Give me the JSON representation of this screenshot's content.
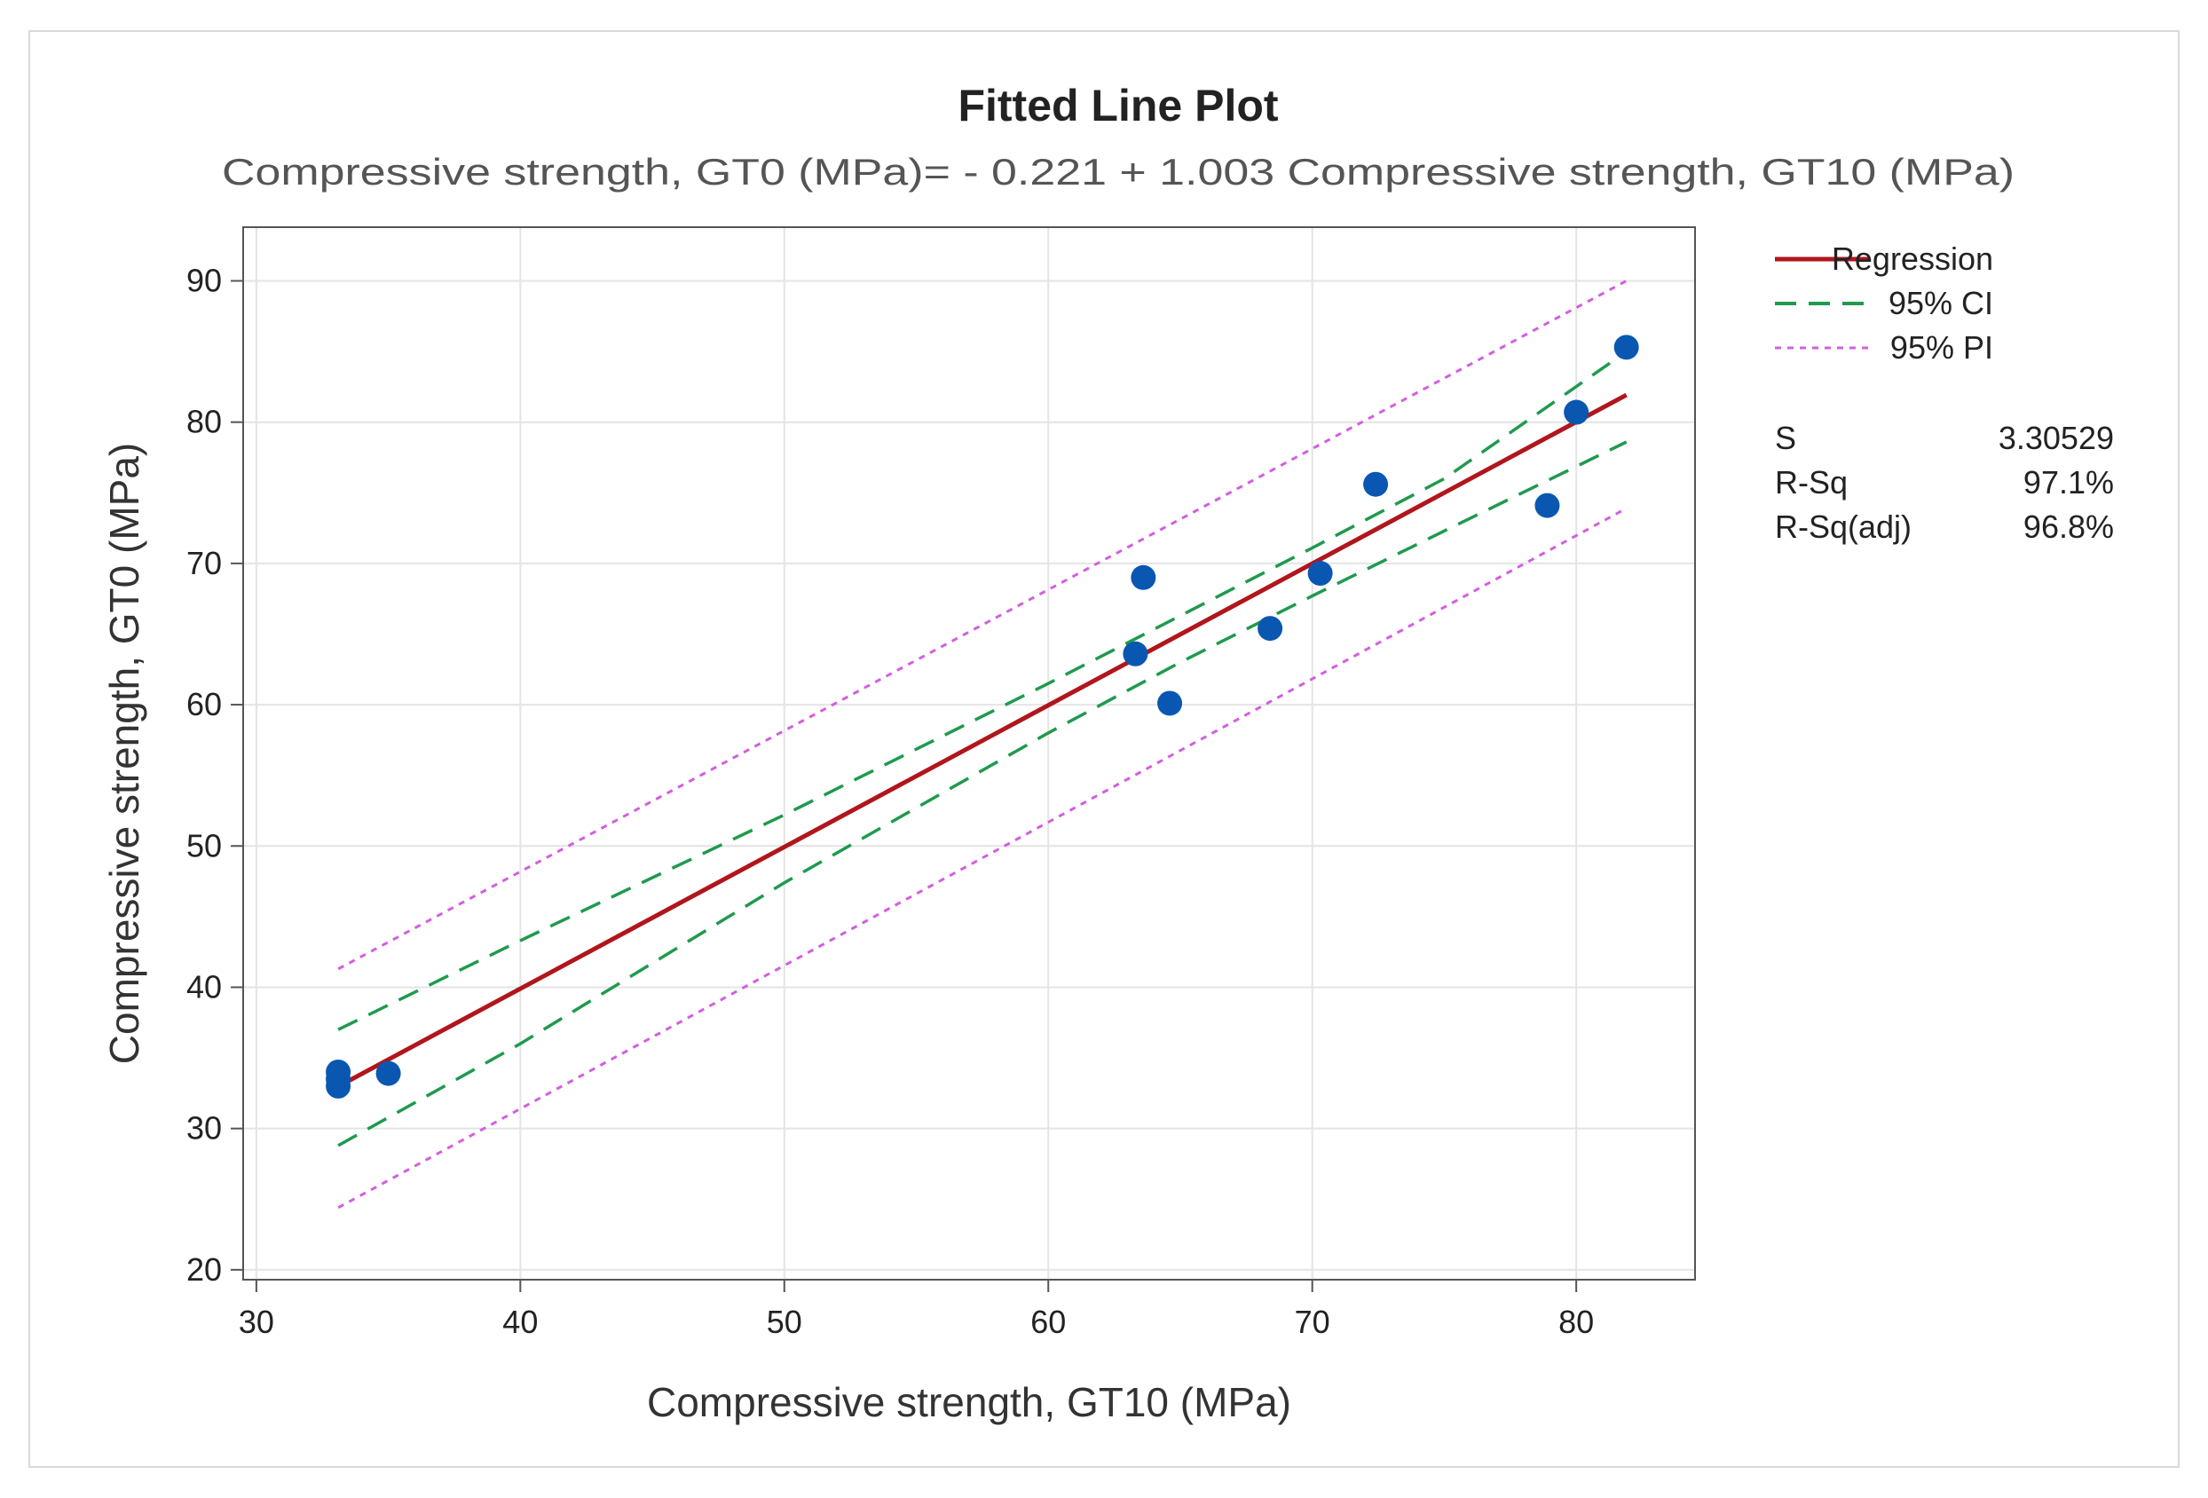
{
  "chart_data": {
    "type": "scatter",
    "title": "Fitted Line Plot",
    "subtitle": "Compressive strength, GT0 (MPa)= - 0.221 + 1.003 Compressive strength, GT10 (MPa)",
    "xlabel": "Compressive strength, GT10 (MPa)",
    "ylabel": "Compressive strength, GT0 (MPa)",
    "xlim": [
      29.5,
      84.5
    ],
    "ylim": [
      19.3,
      93.8
    ],
    "x_ticks": [
      30,
      40,
      50,
      60,
      70,
      80
    ],
    "y_ticks": [
      20,
      30,
      40,
      50,
      60,
      70,
      80,
      90
    ],
    "grid": true,
    "legend_position": "right",
    "points": {
      "x": [
        33.1,
        33.1,
        33.1,
        35.0,
        63.3,
        63.6,
        64.6,
        68.4,
        70.3,
        72.4,
        78.9,
        80.0,
        81.9
      ],
      "y": [
        33.0,
        33.5,
        34.0,
        33.9,
        63.6,
        69.0,
        60.1,
        65.4,
        69.3,
        75.6,
        74.1,
        80.7,
        85.3
      ]
    },
    "regression": {
      "intercept": -0.221,
      "slope": 1.003,
      "x_range": [
        33.1,
        81.9
      ]
    },
    "ci_band": {
      "x": [
        33.1,
        40,
        50,
        60,
        65,
        70,
        75,
        81.9
      ],
      "upper": [
        37.0,
        43.3,
        52.2,
        61.5,
        66.3,
        71.1,
        76.0,
        85.0
      ],
      "lower": [
        28.8,
        36.0,
        47.4,
        58.0,
        63.0,
        67.7,
        72.3,
        78.6
      ]
    },
    "pi_band": {
      "x": [
        33.1,
        81.9
      ],
      "upper": [
        41.3,
        90.0
      ],
      "lower": [
        24.4,
        73.9
      ]
    },
    "legend": [
      {
        "label": "Regression",
        "style": "solid"
      },
      {
        "label": "95% CI",
        "style": "dashed"
      },
      {
        "label": "95% PI",
        "style": "dotted"
      }
    ],
    "stats": [
      {
        "name": "S",
        "value": "3.30529"
      },
      {
        "name": "R-Sq",
        "value": "97.1%"
      },
      {
        "name": "R-Sq(adj)",
        "value": "96.8%"
      }
    ],
    "colors": {
      "regression": "#b0161c",
      "ci": "#1f9a4e",
      "pi": "#d35ee0",
      "points": "#0a57b2",
      "grid": "#e4e4e4",
      "axis": "#555555",
      "text": "#222222",
      "subtitle": "#555555"
    }
  }
}
